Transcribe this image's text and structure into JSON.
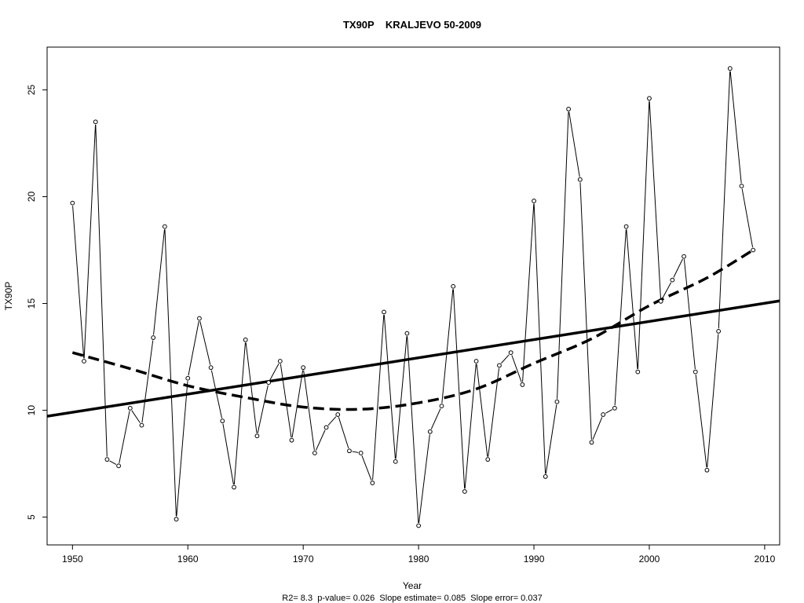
{
  "chart_data": {
    "type": "line",
    "title": "TX90P    KRALJEVO 50-2009",
    "xlabel": "Year",
    "ylabel": "TX90P",
    "caption": "R2= 8.3  p-value= 0.026  Slope estimate= 0.085  Slope error= 0.037",
    "xlim": [
      1947.8,
      2011.3
    ],
    "ylim": [
      3.7,
      27.0
    ],
    "x_ticks": [
      1950,
      1960,
      1970,
      1980,
      1990,
      2000,
      2010
    ],
    "y_ticks": [
      5,
      10,
      15,
      20,
      25
    ],
    "grid": false,
    "x": [
      1950,
      1951,
      1952,
      1953,
      1954,
      1955,
      1956,
      1957,
      1958,
      1959,
      1960,
      1961,
      1962,
      1963,
      1964,
      1965,
      1966,
      1967,
      1968,
      1969,
      1970,
      1971,
      1972,
      1973,
      1974,
      1975,
      1976,
      1977,
      1978,
      1979,
      1980,
      1981,
      1982,
      1983,
      1984,
      1985,
      1986,
      1987,
      1988,
      1989,
      1990,
      1991,
      1992,
      1993,
      1994,
      1995,
      1996,
      1997,
      1998,
      1999,
      2000,
      2001,
      2002,
      2003,
      2004,
      2005,
      2006,
      2007,
      2008,
      2009
    ],
    "series": [
      {
        "values": [
          19.7,
          12.3,
          23.5,
          7.7,
          7.4,
          10.1,
          9.3,
          13.4,
          18.6,
          4.9,
          11.5,
          14.3,
          12.0,
          9.5,
          6.4,
          13.3,
          8.8,
          11.3,
          12.3,
          8.6,
          12.0,
          8.0,
          9.2,
          9.8,
          8.1,
          8.0,
          6.6,
          14.6,
          7.6,
          13.6,
          4.6,
          9.0,
          10.2,
          15.8,
          6.2,
          12.3,
          7.7,
          12.1,
          12.7,
          11.2,
          19.8,
          6.9,
          10.4,
          24.1,
          20.8,
          8.5,
          9.8,
          10.1,
          18.6,
          11.8,
          24.6,
          15.1,
          16.1,
          17.2,
          11.8,
          7.2,
          13.7,
          26.0,
          20.5,
          17.5
        ]
      }
    ],
    "trend_linear": {
      "start": [
        1947.8,
        9.72
      ],
      "end": [
        2011.3,
        15.12
      ]
    },
    "trend_smooth": {
      "x": [
        1950,
        1955,
        1960,
        1965,
        1970,
        1975,
        1980,
        1985,
        1990,
        1995,
        2000,
        2005,
        2009
      ],
      "y": [
        12.7,
        11.95,
        11.15,
        10.6,
        10.15,
        10.05,
        10.35,
        11.0,
        12.2,
        13.35,
        14.9,
        16.2,
        17.5
      ]
    }
  }
}
